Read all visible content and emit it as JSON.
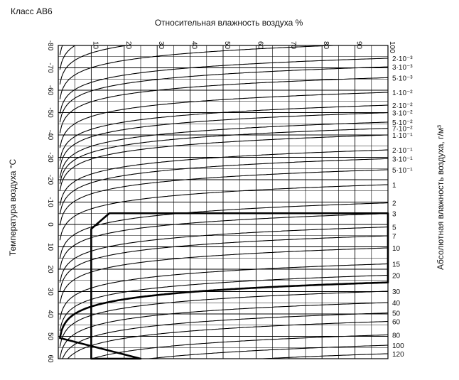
{
  "chart_data": {
    "type": "line",
    "title": "Класс АВ6",
    "top_axis_label": "Относительная влажность воздуха %",
    "left_axis_label": "Температура воздуха °С",
    "right_axis_label": "Абсолютная влажность воздуха, г/м³",
    "top_ticks": [
      "10",
      "20",
      "30",
      "40",
      "50",
      "60",
      "70",
      "80",
      "90",
      "100"
    ],
    "left_ticks": [
      "-80",
      "-70",
      "-60",
      "-50",
      "-40",
      "-30",
      "-20",
      "-10",
      "0",
      "10",
      "20",
      "30",
      "40",
      "50",
      "60"
    ],
    "right_ticks": [
      {
        "label": "2·10⁻³",
        "value": 0.002
      },
      {
        "label": "3·10⁻³",
        "value": 0.003
      },
      {
        "label": "5·10⁻³",
        "value": 0.005
      },
      {
        "label": "1·10⁻²",
        "value": 0.01
      },
      {
        "label": "2·10⁻²",
        "value": 0.02
      },
      {
        "label": "3·10⁻²",
        "value": 0.03
      },
      {
        "label": "5·10⁻²",
        "value": 0.05
      },
      {
        "label": "7·10⁻²",
        "value": 0.07
      },
      {
        "label": "1·10⁻¹",
        "value": 0.1
      },
      {
        "label": "2·10⁻¹",
        "value": 0.2
      },
      {
        "label": "3·10⁻¹",
        "value": 0.3
      },
      {
        "label": "5·10⁻¹",
        "value": 0.5
      },
      {
        "label": "1",
        "value": 1
      },
      {
        "label": "2",
        "value": 2
      },
      {
        "label": "3",
        "value": 3
      },
      {
        "label": "5",
        "value": 5
      },
      {
        "label": "7",
        "value": 7
      },
      {
        "label": "10",
        "value": 10
      },
      {
        "label": "15",
        "value": 15
      },
      {
        "label": "20",
        "value": 20
      },
      {
        "label": "30",
        "value": 30
      },
      {
        "label": "40",
        "value": 40
      },
      {
        "label": "50",
        "value": 50
      },
      {
        "label": "60",
        "value": 60
      },
      {
        "label": "80",
        "value": 80
      },
      {
        "label": "100",
        "value": 100
      },
      {
        "label": "120",
        "value": 120
      }
    ],
    "x_range": [
      0,
      100
    ],
    "temp_range": [
      -80,
      60
    ],
    "grid": true,
    "highlight_region": {
      "temperature": [
        -5,
        60
      ],
      "relative_humidity": [
        10,
        100
      ],
      "absolute_humidity_max": 24
    }
  }
}
